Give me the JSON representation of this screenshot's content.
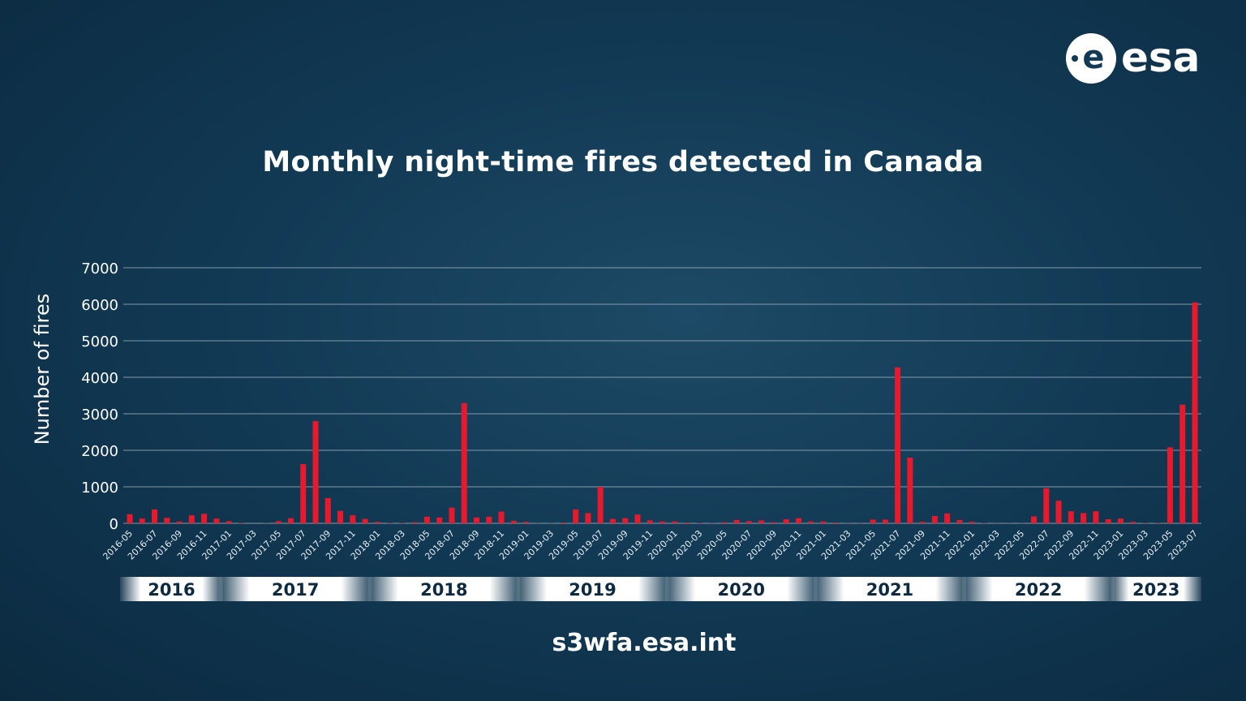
{
  "logo_text": "esa",
  "footer": "s3wfa.esa.int",
  "colors": {
    "bar": "#e8192c",
    "background": "#123a55",
    "grid": "#9fb3c2"
  },
  "chart_data": {
    "type": "bar",
    "title": "Monthly night-time fires detected in Canada",
    "xlabel": "",
    "ylabel": "Number of fires",
    "ylim": [
      0,
      7000
    ],
    "yticks": [
      0,
      1000,
      2000,
      3000,
      4000,
      5000,
      6000,
      7000
    ],
    "grid": true,
    "start_month": "2016-05",
    "categories": [
      "2016-05",
      "2016-06",
      "2016-07",
      "2016-08",
      "2016-09",
      "2016-10",
      "2016-11",
      "2016-12",
      "2017-01",
      "2017-02",
      "2017-03",
      "2017-04",
      "2017-05",
      "2017-06",
      "2017-07",
      "2017-08",
      "2017-09",
      "2017-10",
      "2017-11",
      "2017-12",
      "2018-01",
      "2018-02",
      "2018-03",
      "2018-04",
      "2018-05",
      "2018-06",
      "2018-07",
      "2018-08",
      "2018-09",
      "2018-10",
      "2018-11",
      "2018-12",
      "2019-01",
      "2019-02",
      "2019-03",
      "2019-04",
      "2019-05",
      "2019-06",
      "2019-07",
      "2019-08",
      "2019-09",
      "2019-10",
      "2019-11",
      "2019-12",
      "2020-01",
      "2020-02",
      "2020-03",
      "2020-04",
      "2020-05",
      "2020-06",
      "2020-07",
      "2020-08",
      "2020-09",
      "2020-10",
      "2020-11",
      "2020-12",
      "2021-01",
      "2021-02",
      "2021-03",
      "2021-04",
      "2021-05",
      "2021-06",
      "2021-07",
      "2021-08",
      "2021-09",
      "2021-10",
      "2021-11",
      "2021-12",
      "2022-01",
      "2022-02",
      "2022-03",
      "2022-04",
      "2022-05",
      "2022-06",
      "2022-07",
      "2022-08",
      "2022-09",
      "2022-10",
      "2022-11",
      "2022-12",
      "2023-01",
      "2023-02",
      "2023-03",
      "2023-04",
      "2023-05",
      "2023-06",
      "2023-07"
    ],
    "values": [
      250,
      130,
      380,
      150,
      50,
      220,
      260,
      130,
      60,
      10,
      0,
      5,
      60,
      140,
      1620,
      2800,
      690,
      340,
      220,
      120,
      40,
      10,
      10,
      30,
      180,
      160,
      430,
      3290,
      160,
      180,
      320,
      70,
      40,
      5,
      5,
      20,
      380,
      280,
      1000,
      120,
      140,
      240,
      80,
      50,
      50,
      20,
      10,
      5,
      30,
      90,
      60,
      80,
      30,
      110,
      140,
      50,
      50,
      20,
      5,
      5,
      100,
      100,
      4270,
      1800,
      40,
      200,
      270,
      90,
      40,
      10,
      5,
      5,
      5,
      190,
      960,
      620,
      330,
      280,
      330,
      110,
      130,
      40,
      10,
      10,
      2080,
      3250,
      6050
    ],
    "year_bands": [
      "2016",
      "2017",
      "2018",
      "2019",
      "2020",
      "2021",
      "2022",
      "2023"
    ]
  }
}
